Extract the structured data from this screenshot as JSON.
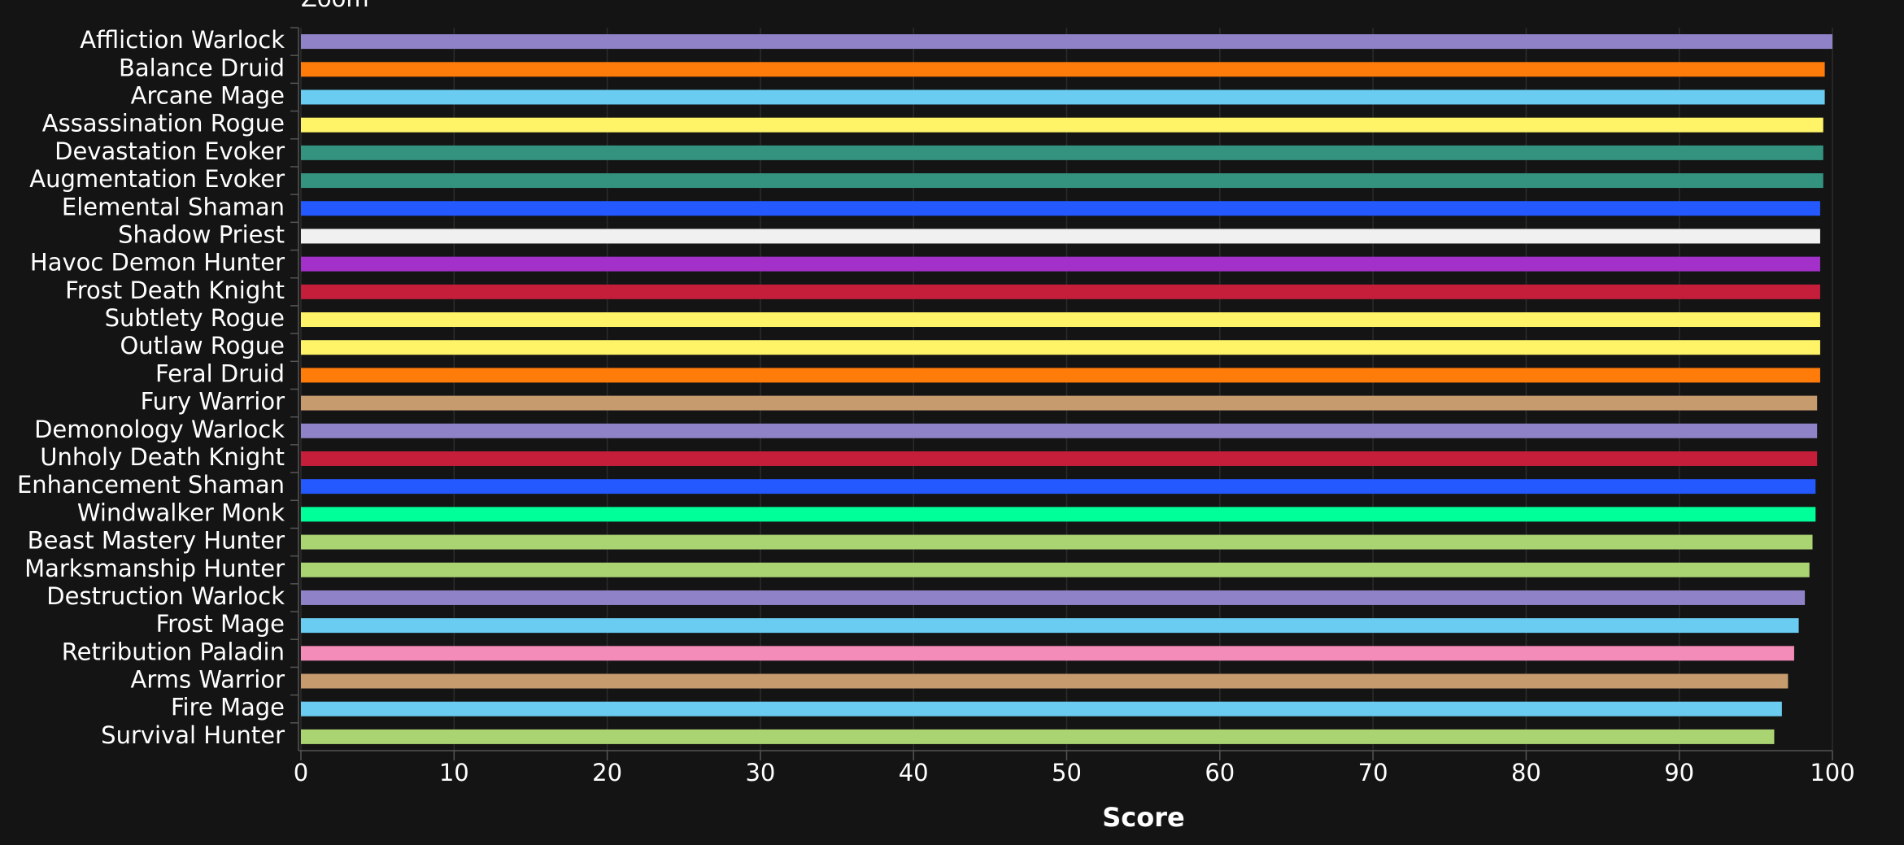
{
  "toolbar": {
    "label": "Zoom"
  },
  "chart_data": {
    "type": "hbar",
    "x_label": "Score",
    "categories": [
      "Affliction Warlock",
      "Balance Druid",
      "Arcane Mage",
      "Assassination Rogue",
      "Devastation Evoker",
      "Augmentation Evoker",
      "Elemental Shaman",
      "Shadow Priest",
      "Havoc Demon Hunter",
      "Frost Death Knight",
      "Subtlety Rogue",
      "Outlaw Rogue",
      "Feral Druid",
      "Fury Warrior",
      "Demonology Warlock",
      "Unholy Death Knight",
      "Enhancement Shaman",
      "Windwalker Monk",
      "Beast Mastery Hunter",
      "Marksmanship Hunter",
      "Destruction Warlock",
      "Frost Mage",
      "Retribution Paladin",
      "Arms Warrior",
      "Fire Mage",
      "Survival Hunter"
    ],
    "values": [
      100,
      99.5,
      99.5,
      99.4,
      99.4,
      99.4,
      99.2,
      99.2,
      99.2,
      99.2,
      99.2,
      99.2,
      99.2,
      99.0,
      99.0,
      99.0,
      98.9,
      98.9,
      98.7,
      98.5,
      98.2,
      97.8,
      97.5,
      97.1,
      96.7,
      96.2
    ],
    "colors": [
      "#8f82c6",
      "#ff7c0a",
      "#69ccf0",
      "#fff468",
      "#33937f",
      "#33937f",
      "#2359ff",
      "#f0f0f0",
      "#a330c9",
      "#c41e3a",
      "#fff468",
      "#fff468",
      "#ff7c0a",
      "#c69b6d",
      "#8f82c6",
      "#c41e3a",
      "#2359ff",
      "#00ff98",
      "#aad372",
      "#aad372",
      "#8f82c6",
      "#69ccf0",
      "#f48cba",
      "#c69b6d",
      "#69ccf0",
      "#aad372"
    ],
    "xlim": [
      0,
      100
    ],
    "xticks": [
      0,
      10,
      20,
      30,
      40,
      50,
      60,
      70,
      80,
      90,
      100
    ],
    "grid": true
  }
}
